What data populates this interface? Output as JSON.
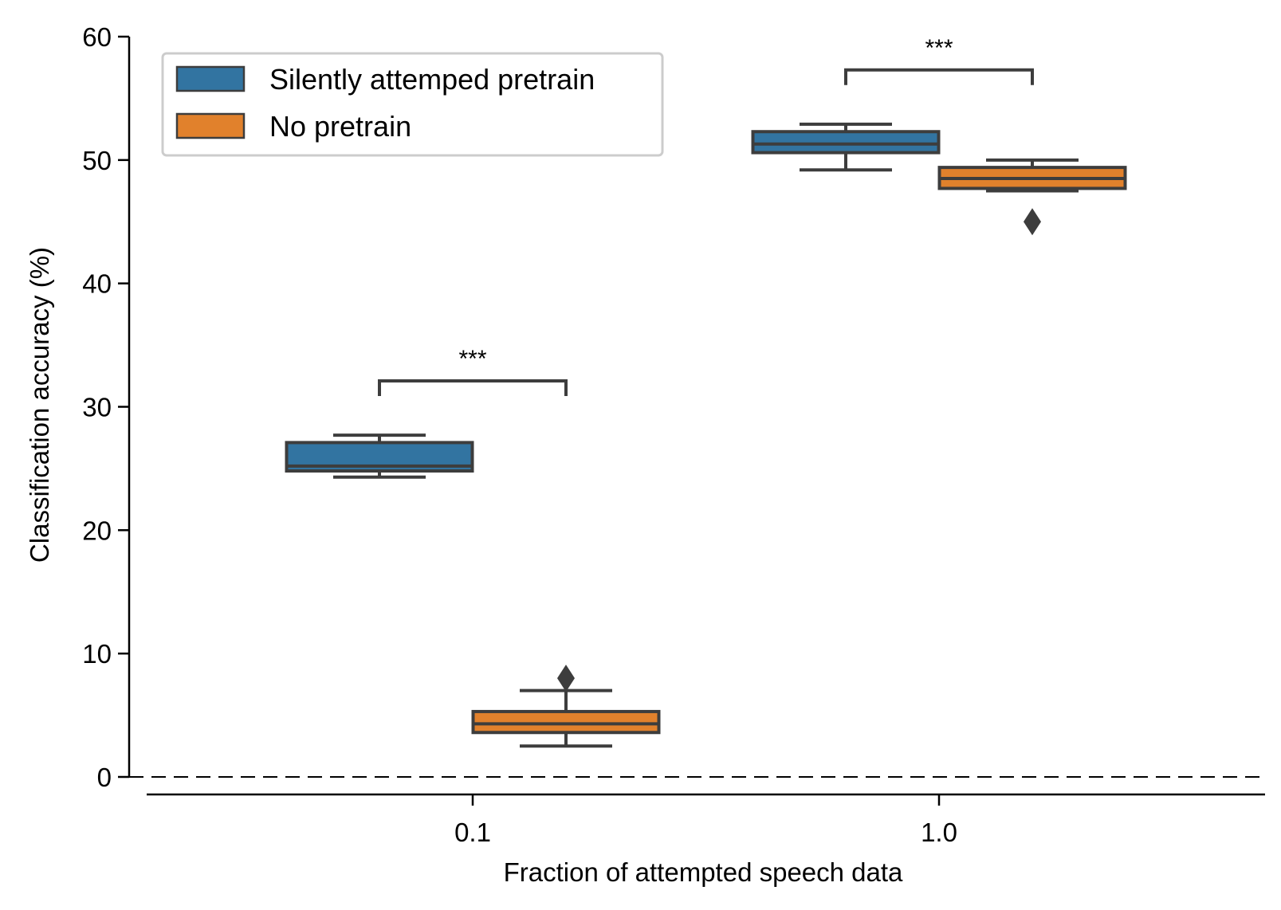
{
  "chart_data": {
    "type": "box",
    "categories": [
      "0.1",
      "1.0"
    ],
    "xlabel": "Fraction of attempted speech data",
    "ylabel": "Classification accuracy (%)",
    "ylim": [
      0,
      60
    ],
    "yticks": [
      "0",
      "10",
      "20",
      "30",
      "40",
      "50",
      "60"
    ],
    "chance_level": 0,
    "legend_position": "top-left",
    "grid": false,
    "series": [
      {
        "name": "Silently attemped pretrain",
        "color": "#3274a1",
        "boxes": [
          {
            "category": "0.1",
            "whisker_low": 24.3,
            "q1": 24.8,
            "median": 25.2,
            "q3": 27.1,
            "whisker_high": 27.7,
            "outliers": []
          },
          {
            "category": "1.0",
            "whisker_low": 49.2,
            "q1": 50.6,
            "median": 51.3,
            "q3": 52.3,
            "whisker_high": 52.9,
            "outliers": []
          }
        ]
      },
      {
        "name": "No pretrain",
        "color": "#e1812c",
        "boxes": [
          {
            "category": "0.1",
            "whisker_low": 2.5,
            "q1": 3.6,
            "median": 4.3,
            "q3": 5.3,
            "whisker_high": 7.0,
            "outliers": [
              8.0
            ]
          },
          {
            "category": "1.0",
            "whisker_low": 47.5,
            "q1": 47.7,
            "median": 48.5,
            "q3": 49.4,
            "whisker_high": 50.0,
            "outliers": [
              45.0
            ]
          }
        ]
      }
    ],
    "annotations": [
      {
        "category": "0.1",
        "text": "***",
        "y": 32.1
      },
      {
        "category": "1.0",
        "text": "***",
        "y": 57.3
      }
    ]
  }
}
